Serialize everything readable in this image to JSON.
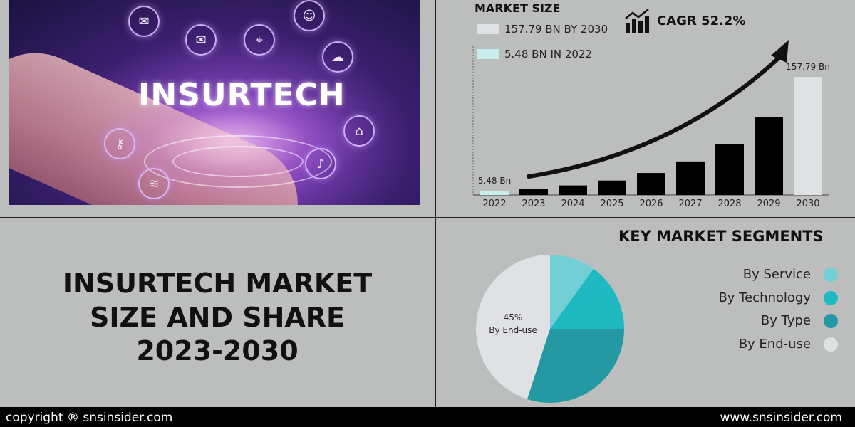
{
  "hero": {
    "title": "INSURTECH"
  },
  "market_size": {
    "label": "MARKET SIZE",
    "legend": [
      {
        "text": "157.79 BN BY 2030",
        "color": "#dfe1e4"
      },
      {
        "text": "5.48 BN IN 2022",
        "color": "#c9ecec"
      }
    ],
    "cagr": "CAGR 52.2%"
  },
  "main_title": {
    "lines": [
      "INSURTECH MARKET",
      "SIZE AND SHARE",
      "2023-2030"
    ]
  },
  "segments": {
    "title": "KEY MARKET SEGMENTS",
    "items": [
      {
        "label": "By Service",
        "color": "#72cfd6"
      },
      {
        "label": "By Technology",
        "color": "#1fb9c2"
      },
      {
        "label": "By Type",
        "color": "#2499a3"
      },
      {
        "label": "By End-use",
        "color": "#dfe1e4"
      }
    ]
  },
  "footer": {
    "left": "copyright ® snsinsider.com",
    "right": "www.snsinsider.com"
  },
  "chart_data": [
    {
      "type": "bar",
      "categories": [
        "2022",
        "2023",
        "2024",
        "2025",
        "2026",
        "2027",
        "2028",
        "2029",
        "2030"
      ],
      "values": [
        5.48,
        8.3,
        12.7,
        19.3,
        29.4,
        44.8,
        68.2,
        103.8,
        157.79
      ],
      "data_labels": {
        "2022": "5.48 Bn",
        "2030": "157.79 Bn"
      },
      "colors": {
        "2022": "#c9ecec",
        "2030": "#dfe1e4",
        "default": "#000000"
      },
      "ylim": [
        0,
        170
      ],
      "grid": false
    },
    {
      "type": "pie",
      "labels": [
        "By Service",
        "By Technology",
        "By Type",
        "By End-use"
      ],
      "values": [
        10,
        15,
        30,
        45
      ],
      "colors": [
        "#72cfd6",
        "#1fb9c2",
        "#2499a3",
        "#dfe1e4"
      ],
      "annotation": {
        "value": "45%",
        "label": "By End-use"
      }
    }
  ]
}
